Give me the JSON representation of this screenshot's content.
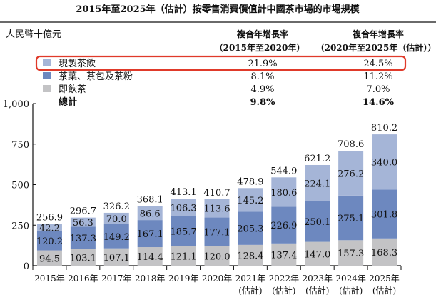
{
  "chart_data": {
    "type": "bar",
    "stacked": true,
    "title": "2015年至2025年（估計）按零售消費價值計中國茶市場的市場規模",
    "ylabel": "人民幣十億元",
    "ylim": [
      0,
      1000
    ],
    "yticks": [
      "0",
      "250",
      "500",
      "750",
      "1,000"
    ],
    "ytick_values": [
      0,
      250,
      500,
      750,
      1000
    ],
    "categories": [
      {
        "year": "2015年",
        "note": ""
      },
      {
        "year": "2016年",
        "note": ""
      },
      {
        "year": "2017年",
        "note": ""
      },
      {
        "year": "2018年",
        "note": ""
      },
      {
        "year": "2019年",
        "note": ""
      },
      {
        "year": "2020年",
        "note": ""
      },
      {
        "year": "2021年",
        "note": "(估計)"
      },
      {
        "year": "2022年",
        "note": "(估計)"
      },
      {
        "year": "2023年",
        "note": "(估計)"
      },
      {
        "year": "2024年",
        "note": "(估計)"
      },
      {
        "year": "2025年",
        "note": "(估計)"
      }
    ],
    "series": [
      {
        "name": "即飲茶",
        "color": "#c3c3c5",
        "values": [
          94.5,
          103.1,
          107.1,
          114.4,
          121.1,
          120.0,
          128.4,
          137.4,
          147.0,
          157.3,
          168.3
        ],
        "labels": [
          "94.5",
          "103.1",
          "107.1",
          "114.4",
          "121.1",
          "120.0",
          "128.4",
          "137.4",
          "147.0",
          "157.3",
          "168.3"
        ],
        "cagr_2015_2020": "4.9%",
        "cagr_2020_2025": "7.0%"
      },
      {
        "name": "茶葉、茶包及茶粉",
        "color": "#6d88bf",
        "values": [
          120.2,
          137.3,
          149.2,
          167.1,
          185.7,
          177.1,
          205.3,
          226.9,
          250.1,
          275.1,
          301.8
        ],
        "labels": [
          "120.2",
          "137.3",
          "149.2",
          "167.1",
          "185.7",
          "177.1",
          "205.3",
          "226.9",
          "250.1",
          "275.1",
          "301.8"
        ],
        "cagr_2015_2020": "8.1%",
        "cagr_2020_2025": "11.2%"
      },
      {
        "name": "現製茶飲",
        "color": "#a5b5d7",
        "values": [
          42.2,
          56.3,
          70.0,
          86.6,
          106.3,
          113.6,
          145.2,
          180.6,
          224.1,
          276.2,
          340.0
        ],
        "labels": [
          "42.2",
          "56.3",
          "70.0",
          "86.6",
          "106.3",
          "113.6",
          "145.2",
          "180.6",
          "224.1",
          "276.2",
          "340.0"
        ],
        "cagr_2015_2020": "21.9%",
        "cagr_2020_2025": "24.5%",
        "highlighted": true
      }
    ],
    "totals": [
      "256.9",
      "296.7",
      "326.2",
      "368.1",
      "413.1",
      "410.7",
      "478.9",
      "544.9",
      "621.2",
      "708.6",
      "810.2"
    ],
    "total_row": {
      "name": "總計",
      "cagr_2015_2020": "9.8%",
      "cagr_2020_2025": "14.6%"
    },
    "cagr_headers": [
      {
        "line1": "複合年增長率",
        "line2": "（2015年至2020年）"
      },
      {
        "line1": "複合年增長率",
        "line2": "（2020年至2025年（估計））"
      }
    ],
    "highlight_color": "#e03a2a",
    "grid": false,
    "legend": "top"
  }
}
